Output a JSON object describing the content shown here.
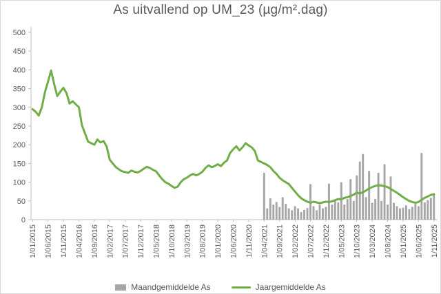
{
  "chart_data": {
    "type": "combo",
    "title": "As uitvallend op UM_23 (µg/m².dag)",
    "ylabel": "",
    "ylim": [
      0,
      500
    ],
    "ytick_step": 50,
    "yticks": [
      0,
      50,
      100,
      150,
      200,
      250,
      300,
      350,
      400,
      450,
      500
    ],
    "x_tick_every": 5,
    "x_tick_labels": [
      "1/01/2015",
      "1/06/2015",
      "1/11/2015",
      "1/04/2016",
      "1/09/2016",
      "1/02/2017",
      "1/07/2017",
      "1/12/2017",
      "1/05/2018",
      "1/10/2018",
      "1/03/2019",
      "1/08/2019",
      "1/01/2020",
      "1/06/2020",
      "1/11/2020",
      "1/04/2021",
      "1/09/2021",
      "1/02/2022",
      "1/07/2022",
      "1/12/2022",
      "1/05/2023",
      "1/10/2023",
      "1/03/2024",
      "1/08/2024",
      "1/01/2025",
      "1/06/2025",
      "1/11/2025"
    ],
    "x_unit": "month",
    "legend_position": "bottom",
    "gridlines": false,
    "axis_color": "#bfbfbf",
    "text_color": "#595959",
    "series": [
      {
        "name": "Maandgemiddelde As",
        "type": "bar",
        "color": "#a6a6a6",
        "start_index": 75,
        "values": [
          125,
          30,
          57,
          40,
          47,
          34,
          60,
          42,
          30,
          25,
          36,
          30,
          20,
          26,
          31,
          95,
          36,
          25,
          40,
          30,
          34,
          96,
          40,
          50,
          46,
          100,
          40,
          55,
          108,
          50,
          118,
          155,
          175,
          60,
          130,
          45,
          55,
          125,
          50,
          148,
          40,
          115,
          45,
          36,
          30,
          32,
          38,
          28,
          34,
          42,
          36,
          178,
          46,
          52,
          58,
          66
        ]
      },
      {
        "name": "Jaargemiddelde As",
        "type": "line",
        "color": "#70ad47",
        "start_index": 0,
        "values": [
          295,
          288,
          278,
          300,
          340,
          368,
          398,
          362,
          330,
          342,
          352,
          338,
          310,
          316,
          308,
          300,
          252,
          230,
          208,
          204,
          200,
          214,
          206,
          210,
          195,
          160,
          150,
          140,
          134,
          129,
          127,
          125,
          131,
          128,
          126,
          130,
          136,
          141,
          138,
          133,
          129,
          118,
          108,
          100,
          96,
          90,
          85,
          88,
          100,
          108,
          112,
          118,
          122,
          118,
          122,
          128,
          138,
          145,
          140,
          143,
          148,
          143,
          152,
          158,
          178,
          188,
          196,
          185,
          193,
          204,
          198,
          193,
          183,
          158,
          154,
          150,
          146,
          140,
          130,
          122,
          112,
          105,
          100,
          95,
          85,
          75,
          65,
          57,
          52,
          48,
          45,
          48,
          46,
          44,
          46,
          48,
          47,
          49,
          52,
          55,
          54,
          58,
          60,
          63,
          67,
          72,
          70,
          73,
          78,
          83,
          87,
          90,
          92,
          91,
          89,
          87,
          82,
          77,
          72,
          66,
          60,
          55,
          50,
          47,
          45,
          47,
          53,
          58,
          62,
          66,
          68
        ]
      }
    ]
  }
}
